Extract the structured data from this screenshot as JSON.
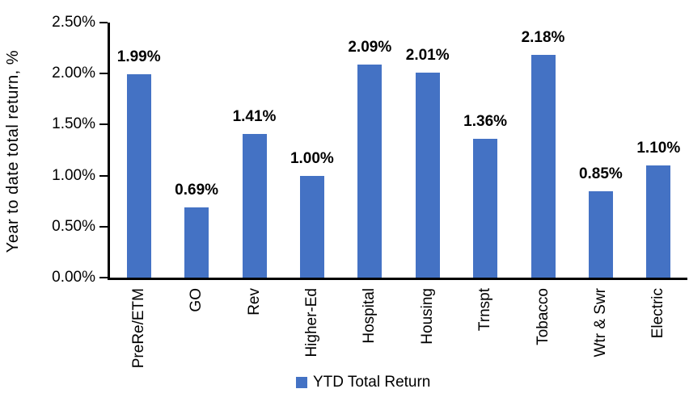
{
  "chart_data": {
    "type": "bar",
    "title": "",
    "ylabel": "Year to date total return, %",
    "xlabel": "",
    "ylim": [
      0,
      2.5
    ],
    "grid": false,
    "legend_position": "bottom",
    "bar_color": "#4472C4",
    "axis_color": "#000000",
    "categories": [
      "PreRe/ETM",
      "GO",
      "Rev",
      "Higher-Ed",
      "Hospital",
      "Housing",
      "Trnspt",
      "Tobacco",
      "Wtr & Swr",
      "Electric"
    ],
    "yticks": [
      {
        "value": 0.0,
        "label": "0.00%"
      },
      {
        "value": 0.5,
        "label": "0.50%"
      },
      {
        "value": 1.0,
        "label": "1.00%"
      },
      {
        "value": 1.5,
        "label": "1.50%"
      },
      {
        "value": 2.0,
        "label": "2.00%"
      },
      {
        "value": 2.5,
        "label": "2.50%"
      }
    ],
    "series": [
      {
        "name": "YTD Total Return",
        "values": [
          1.99,
          0.69,
          1.41,
          1.0,
          2.09,
          2.01,
          1.36,
          2.18,
          0.85,
          1.1
        ],
        "data_labels": [
          "1.99%",
          "0.69%",
          "1.41%",
          "1.00%",
          "2.09%",
          "2.01%",
          "1.36%",
          "2.18%",
          "0.85%",
          "1.10%"
        ]
      }
    ]
  }
}
